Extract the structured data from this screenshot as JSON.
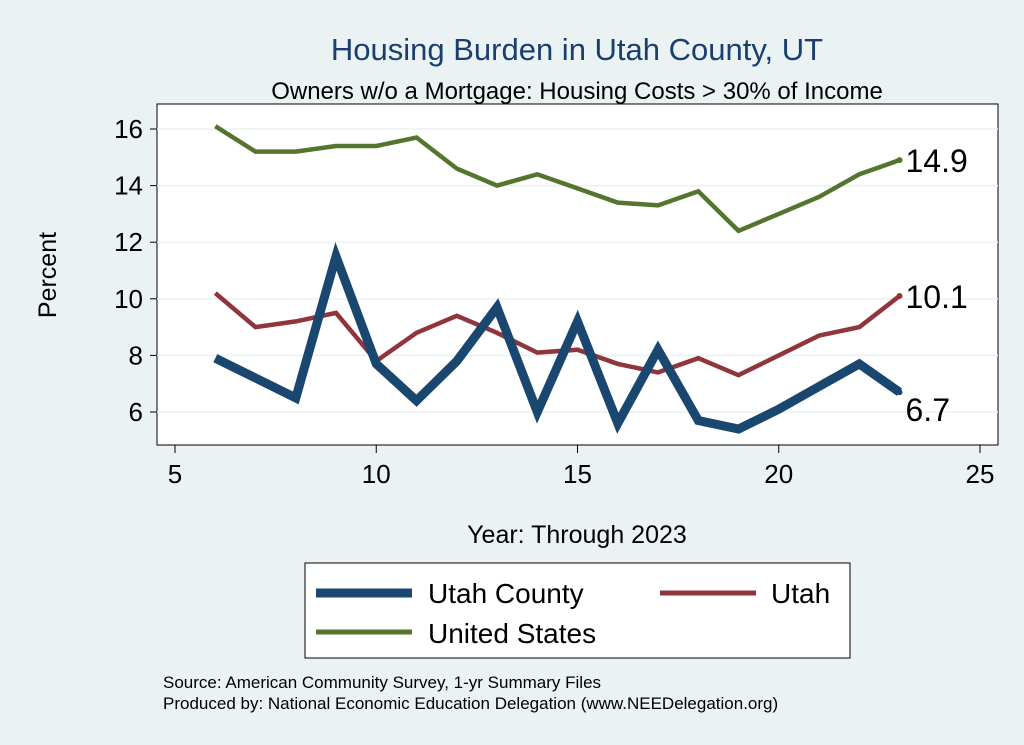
{
  "chart_data": {
    "type": "line",
    "title": "Housing Burden in Utah County, UT",
    "subtitle": "Owners w/o a Mortgage: Housing Costs > 30% of Income",
    "xlabel": "Year: Through 2023",
    "ylabel": "Percent",
    "xlim": [
      5,
      25
    ],
    "ylim": [
      4.9,
      16.7
    ],
    "xticks": [
      5,
      10,
      15,
      20,
      25
    ],
    "yticks": [
      6,
      8,
      10,
      12,
      14,
      16
    ],
    "grid": true,
    "legend_position": "bottom",
    "x": [
      6,
      7,
      8,
      9,
      10,
      11,
      12,
      13,
      14,
      15,
      16,
      17,
      18,
      19,
      20,
      21,
      22,
      23
    ],
    "series": [
      {
        "name": "Utah County",
        "color": "#1a476f",
        "values": [
          7.9,
          7.2,
          6.5,
          11.5,
          7.7,
          6.4,
          7.8,
          9.7,
          6.0,
          9.2,
          5.6,
          8.2,
          5.7,
          5.4,
          6.1,
          6.9,
          7.7,
          6.7
        ],
        "end_label": "6.7"
      },
      {
        "name": "Utah",
        "color": "#90353b",
        "values": [
          10.2,
          9.0,
          9.2,
          9.5,
          7.8,
          8.8,
          9.4,
          8.8,
          8.1,
          8.2,
          7.7,
          7.4,
          7.9,
          7.3,
          8.0,
          8.7,
          9.0,
          10.1
        ],
        "end_label": "10.1"
      },
      {
        "name": "United States",
        "color": "#55752f",
        "values": [
          16.1,
          15.2,
          15.2,
          15.4,
          15.4,
          15.7,
          14.6,
          14.0,
          14.4,
          13.9,
          13.4,
          13.3,
          13.8,
          12.4,
          13.0,
          13.6,
          14.4,
          14.9
        ],
        "end_label": "14.9"
      }
    ],
    "source_lines": [
      "Source: American Community Survey, 1-yr Summary Files",
      "Produced by: National Economic Education Delegation (www.NEEDelegation.org)"
    ]
  }
}
